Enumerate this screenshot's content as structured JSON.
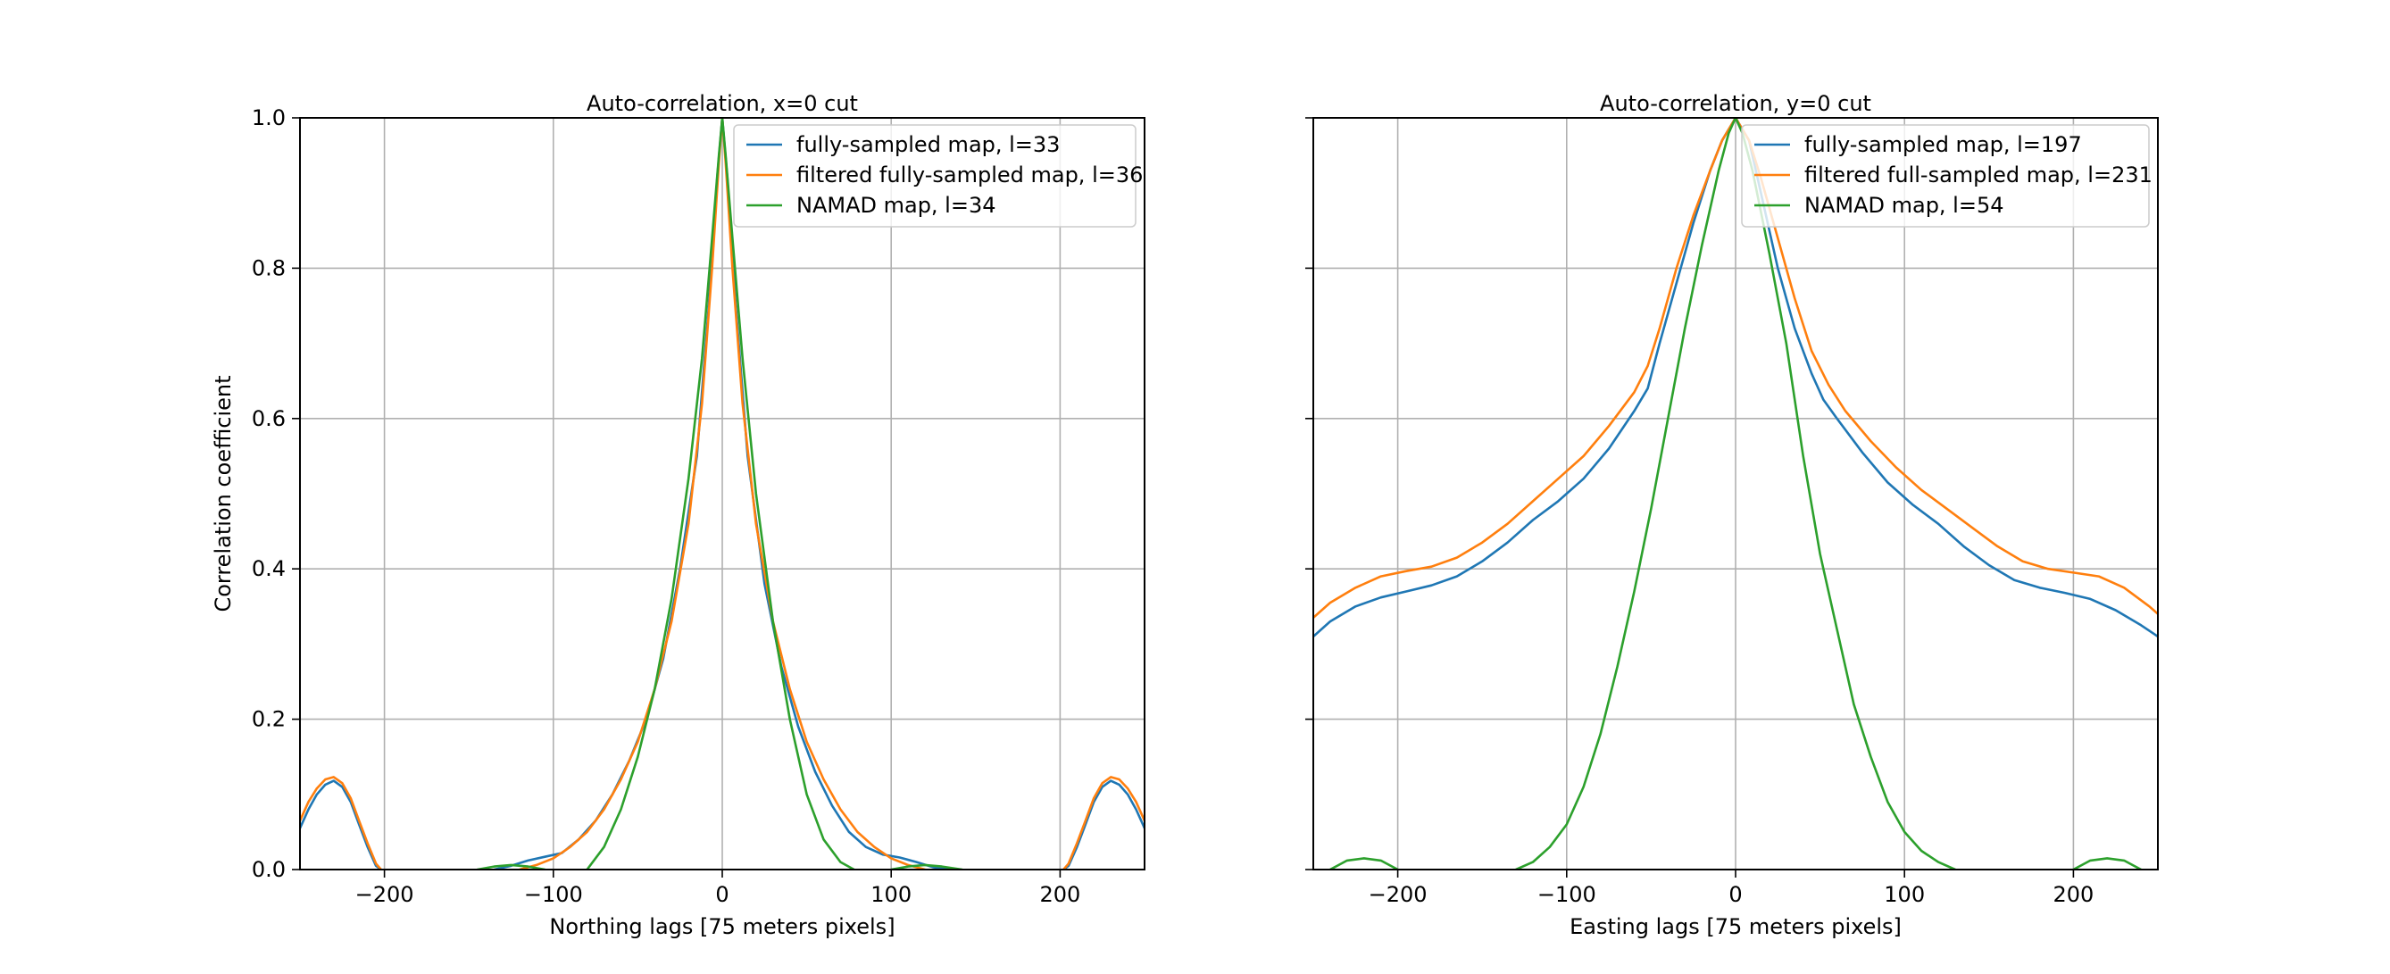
{
  "chart_data": [
    {
      "type": "line",
      "title": "Auto-correlation, x=0 cut",
      "xlabel": "Northing lags [75 meters pixels]",
      "ylabel": "Correlation coefficient",
      "xlim": [
        -250,
        250
      ],
      "ylim": [
        0,
        1.0
      ],
      "xticks": [
        -200,
        -100,
        0,
        100,
        200
      ],
      "xtick_labels": [
        "−200",
        "−100",
        "0",
        "100",
        "200"
      ],
      "yticks": [
        0,
        0.2,
        0.4,
        0.6,
        0.8,
        1.0
      ],
      "ytick_labels": [
        "0.0",
        "0.2",
        "0.4",
        "0.6",
        "0.8",
        "1.0"
      ],
      "grid": true,
      "legend_position": "top-right",
      "series": [
        {
          "name": "fully-sampled map, l=33",
          "color": "#1f77b4",
          "points": [
            [
              -250,
              0.055
            ],
            [
              -245,
              0.08
            ],
            [
              -240,
              0.1
            ],
            [
              -235,
              0.113
            ],
            [
              -230,
              0.118
            ],
            [
              -225,
              0.11
            ],
            [
              -220,
              0.09
            ],
            [
              -215,
              0.06
            ],
            [
              -210,
              0.03
            ],
            [
              -205,
              0.005
            ],
            [
              -202,
              0.0
            ],
            null,
            [
              -135,
              0.0
            ],
            [
              -125,
              0.005
            ],
            [
              -115,
              0.012
            ],
            [
              -105,
              0.017
            ],
            [
              -95,
              0.022
            ],
            [
              -85,
              0.04
            ],
            [
              -75,
              0.065
            ],
            [
              -65,
              0.1
            ],
            [
              -55,
              0.145
            ],
            [
              -45,
              0.2
            ],
            [
              -35,
              0.28
            ],
            [
              -25,
              0.4
            ],
            [
              -15,
              0.55
            ],
            [
              -8,
              0.75
            ],
            [
              -3,
              0.92
            ],
            [
              0,
              1.0
            ],
            [
              3,
              0.92
            ],
            [
              8,
              0.75
            ],
            [
              15,
              0.55
            ],
            [
              25,
              0.38
            ],
            [
              35,
              0.27
            ],
            [
              45,
              0.19
            ],
            [
              55,
              0.13
            ],
            [
              65,
              0.085
            ],
            [
              75,
              0.05
            ],
            [
              85,
              0.03
            ],
            [
              95,
              0.02
            ],
            [
              105,
              0.016
            ],
            [
              115,
              0.01
            ],
            [
              125,
              0.003
            ],
            [
              135,
              0.0
            ],
            null,
            [
              202,
              0.0
            ],
            [
              205,
              0.005
            ],
            [
              210,
              0.03
            ],
            [
              215,
              0.06
            ],
            [
              220,
              0.09
            ],
            [
              225,
              0.11
            ],
            [
              230,
              0.118
            ],
            [
              235,
              0.113
            ],
            [
              240,
              0.1
            ],
            [
              245,
              0.08
            ],
            [
              250,
              0.055
            ]
          ]
        },
        {
          "name": "filtered fully-sampled map, l=36",
          "color": "#ff7f0e",
          "points": [
            [
              -250,
              0.065
            ],
            [
              -245,
              0.09
            ],
            [
              -240,
              0.108
            ],
            [
              -235,
              0.12
            ],
            [
              -230,
              0.123
            ],
            [
              -225,
              0.115
            ],
            [
              -220,
              0.095
            ],
            [
              -215,
              0.065
            ],
            [
              -210,
              0.035
            ],
            [
              -205,
              0.008
            ],
            [
              -202,
              0.0
            ],
            null,
            [
              -120,
              0.0
            ],
            [
              -110,
              0.006
            ],
            [
              -100,
              0.015
            ],
            [
              -90,
              0.03
            ],
            [
              -80,
              0.05
            ],
            [
              -70,
              0.08
            ],
            [
              -60,
              0.12
            ],
            [
              -50,
              0.17
            ],
            [
              -40,
              0.24
            ],
            [
              -30,
              0.33
            ],
            [
              -20,
              0.46
            ],
            [
              -12,
              0.62
            ],
            [
              -6,
              0.8
            ],
            [
              -2,
              0.94
            ],
            [
              0,
              1.0
            ],
            [
              2,
              0.94
            ],
            [
              6,
              0.8
            ],
            [
              12,
              0.62
            ],
            [
              20,
              0.46
            ],
            [
              30,
              0.33
            ],
            [
              40,
              0.24
            ],
            [
              50,
              0.17
            ],
            [
              60,
              0.12
            ],
            [
              70,
              0.08
            ],
            [
              80,
              0.05
            ],
            [
              90,
              0.03
            ],
            [
              100,
              0.015
            ],
            [
              110,
              0.006
            ],
            [
              120,
              0.0
            ],
            null,
            [
              202,
              0.0
            ],
            [
              205,
              0.008
            ],
            [
              210,
              0.035
            ],
            [
              215,
              0.065
            ],
            [
              220,
              0.095
            ],
            [
              225,
              0.115
            ],
            [
              230,
              0.123
            ],
            [
              235,
              0.12
            ],
            [
              240,
              0.108
            ],
            [
              245,
              0.09
            ],
            [
              250,
              0.065
            ]
          ]
        },
        {
          "name": "NAMAD map, l=34",
          "color": "#2ca02c",
          "points": [
            [
              -145,
              0.0
            ],
            [
              -135,
              0.004
            ],
            [
              -125,
              0.006
            ],
            [
              -115,
              0.004
            ],
            [
              -105,
              0.0
            ],
            null,
            [
              -80,
              0.0
            ],
            [
              -70,
              0.03
            ],
            [
              -60,
              0.08
            ],
            [
              -50,
              0.15
            ],
            [
              -40,
              0.24
            ],
            [
              -30,
              0.36
            ],
            [
              -20,
              0.52
            ],
            [
              -12,
              0.68
            ],
            [
              -6,
              0.84
            ],
            [
              -2,
              0.95
            ],
            [
              0,
              1.0
            ],
            [
              2,
              0.95
            ],
            [
              6,
              0.84
            ],
            [
              12,
              0.68
            ],
            [
              20,
              0.5
            ],
            [
              30,
              0.33
            ],
            [
              40,
              0.2
            ],
            [
              50,
              0.1
            ],
            [
              60,
              0.04
            ],
            [
              70,
              0.01
            ],
            [
              78,
              0.0
            ],
            null,
            [
              100,
              0.0
            ],
            [
              110,
              0.004
            ],
            [
              120,
              0.006
            ],
            [
              130,
              0.004
            ],
            [
              142,
              0.0
            ]
          ]
        }
      ]
    },
    {
      "type": "line",
      "title": "Auto-correlation, y=0 cut",
      "xlabel": "Easting lags [75 meters pixels]",
      "ylabel": "",
      "xlim": [
        -250,
        250
      ],
      "ylim": [
        0,
        1.0
      ],
      "xticks": [
        -200,
        -100,
        0,
        100,
        200
      ],
      "xtick_labels": [
        "−200",
        "−100",
        "0",
        "100",
        "200"
      ],
      "yticks": [
        0,
        0.2,
        0.4,
        0.6,
        0.8,
        1.0
      ],
      "ytick_labels": [],
      "grid": true,
      "legend_position": "top-right",
      "series": [
        {
          "name": "fully-sampled map, l=197",
          "color": "#1f77b4",
          "points": [
            [
              -250,
              0.31
            ],
            [
              -240,
              0.33
            ],
            [
              -225,
              0.35
            ],
            [
              -210,
              0.362
            ],
            [
              -195,
              0.37
            ],
            [
              -180,
              0.378
            ],
            [
              -165,
              0.39
            ],
            [
              -150,
              0.41
            ],
            [
              -135,
              0.435
            ],
            [
              -120,
              0.465
            ],
            [
              -105,
              0.49
            ],
            [
              -90,
              0.52
            ],
            [
              -75,
              0.56
            ],
            [
              -60,
              0.61
            ],
            [
              -52,
              0.64
            ],
            [
              -45,
              0.7
            ],
            [
              -35,
              0.78
            ],
            [
              -25,
              0.86
            ],
            [
              -15,
              0.93
            ],
            [
              -8,
              0.97
            ],
            [
              0,
              1.0
            ],
            [
              8,
              0.97
            ],
            [
              15,
              0.9
            ],
            [
              25,
              0.8
            ],
            [
              35,
              0.72
            ],
            [
              45,
              0.66
            ],
            [
              52,
              0.625
            ],
            [
              60,
              0.6
            ],
            [
              75,
              0.555
            ],
            [
              90,
              0.515
            ],
            [
              105,
              0.485
            ],
            [
              120,
              0.46
            ],
            [
              135,
              0.43
            ],
            [
              150,
              0.405
            ],
            [
              165,
              0.385
            ],
            [
              180,
              0.375
            ],
            [
              195,
              0.368
            ],
            [
              210,
              0.36
            ],
            [
              225,
              0.345
            ],
            [
              240,
              0.325
            ],
            [
              250,
              0.31
            ]
          ]
        },
        {
          "name": "filtered full-sampled map, l=231",
          "color": "#ff7f0e",
          "points": [
            [
              -250,
              0.335
            ],
            [
              -240,
              0.355
            ],
            [
              -225,
              0.375
            ],
            [
              -210,
              0.39
            ],
            [
              -195,
              0.397
            ],
            [
              -180,
              0.403
            ],
            [
              -165,
              0.415
            ],
            [
              -150,
              0.435
            ],
            [
              -135,
              0.46
            ],
            [
              -120,
              0.49
            ],
            [
              -105,
              0.52
            ],
            [
              -90,
              0.55
            ],
            [
              -75,
              0.59
            ],
            [
              -60,
              0.635
            ],
            [
              -52,
              0.67
            ],
            [
              -45,
              0.72
            ],
            [
              -35,
              0.8
            ],
            [
              -25,
              0.87
            ],
            [
              -15,
              0.93
            ],
            [
              -8,
              0.97
            ],
            [
              0,
              1.0
            ],
            [
              8,
              0.97
            ],
            [
              15,
              0.92
            ],
            [
              25,
              0.84
            ],
            [
              35,
              0.76
            ],
            [
              45,
              0.69
            ],
            [
              55,
              0.645
            ],
            [
              65,
              0.61
            ],
            [
              80,
              0.57
            ],
            [
              95,
              0.535
            ],
            [
              110,
              0.505
            ],
            [
              125,
              0.48
            ],
            [
              140,
              0.455
            ],
            [
              155,
              0.43
            ],
            [
              170,
              0.41
            ],
            [
              185,
              0.4
            ],
            [
              200,
              0.395
            ],
            [
              215,
              0.39
            ],
            [
              230,
              0.375
            ],
            [
              245,
              0.35
            ],
            [
              250,
              0.34
            ]
          ]
        },
        {
          "name": "NAMAD map, l=54",
          "color": "#2ca02c",
          "points": [
            [
              -240,
              0.0
            ],
            [
              -230,
              0.012
            ],
            [
              -220,
              0.015
            ],
            [
              -210,
              0.012
            ],
            [
              -200,
              0.0
            ],
            null,
            [
              -130,
              0.0
            ],
            [
              -120,
              0.01
            ],
            [
              -110,
              0.03
            ],
            [
              -100,
              0.06
            ],
            [
              -90,
              0.11
            ],
            [
              -80,
              0.18
            ],
            [
              -70,
              0.27
            ],
            [
              -60,
              0.37
            ],
            [
              -50,
              0.48
            ],
            [
              -40,
              0.6
            ],
            [
              -30,
              0.72
            ],
            [
              -20,
              0.83
            ],
            [
              -10,
              0.93
            ],
            [
              -4,
              0.98
            ],
            [
              0,
              1.0
            ],
            [
              4,
              0.98
            ],
            [
              10,
              0.93
            ],
            [
              20,
              0.82
            ],
            [
              30,
              0.7
            ],
            [
              40,
              0.55
            ],
            [
              50,
              0.42
            ],
            [
              60,
              0.32
            ],
            [
              70,
              0.22
            ],
            [
              80,
              0.15
            ],
            [
              90,
              0.09
            ],
            [
              100,
              0.05
            ],
            [
              110,
              0.025
            ],
            [
              120,
              0.01
            ],
            [
              130,
              0.0
            ],
            null,
            [
              200,
              0.0
            ],
            [
              210,
              0.012
            ],
            [
              220,
              0.015
            ],
            [
              230,
              0.012
            ],
            [
              240,
              0.0
            ]
          ]
        }
      ]
    }
  ]
}
